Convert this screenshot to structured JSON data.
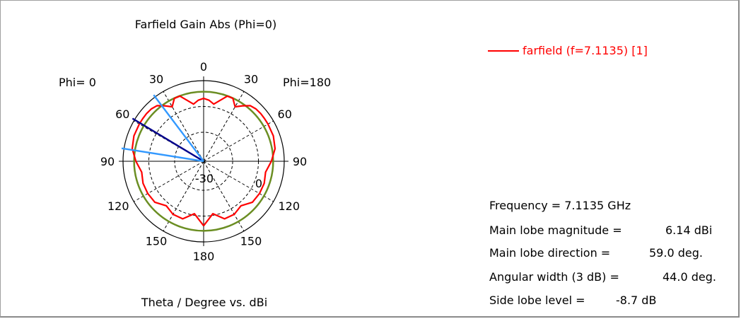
{
  "chart_data": {
    "type": "polar",
    "title": "Farfield Gain Abs (Phi=0)",
    "xlabel": "Theta / Degree vs. dBi",
    "left_label": "Phi=  0",
    "right_label": "Phi=180",
    "theta_tick_labels": [
      "0",
      "30",
      "60",
      "90",
      "120",
      "150",
      "180",
      "150",
      "120",
      "90",
      "60",
      "30"
    ],
    "radial_tick_labels": [
      "-30",
      "0"
    ],
    "radial_range_dbi": [
      -40,
      10
    ],
    "series": [
      {
        "name": "farfield (f=7.1135) [1]",
        "color": "#ff0000",
        "theta_deg": [
          -180,
          -170,
          -160,
          -150,
          -140,
          -130,
          -120,
          -110,
          -100,
          -90,
          -80,
          -70,
          -60,
          -55,
          -50,
          -45,
          -40,
          -35,
          -30,
          -25,
          -20,
          -15,
          -10,
          -5,
          0,
          5,
          10,
          15,
          20,
          25,
          30,
          35,
          40,
          45,
          50,
          55,
          60,
          70,
          80,
          90,
          100,
          110,
          120,
          130,
          140,
          150,
          160,
          170,
          180
        ],
        "gain_dbi": [
          0,
          -7,
          -2,
          -2,
          -4,
          -0.5,
          0,
          0,
          -1,
          2,
          5,
          6,
          6.1,
          6.1,
          6.14,
          5.9,
          5,
          2,
          -1,
          3,
          3,
          -1,
          -4,
          -2,
          -1,
          -2,
          -4,
          -1,
          3,
          3,
          -1,
          2,
          5,
          5.9,
          6.14,
          6.1,
          6.1,
          6,
          5,
          2,
          -1,
          0,
          0,
          -0.5,
          -4,
          -2,
          -2,
          -7,
          0
        ]
      }
    ],
    "circles": [
      {
        "label": "3 dB contour",
        "value_dbi": 3.14,
        "color": "#6b8e23"
      }
    ],
    "indicator_lines": [
      {
        "label": "Main lobe direction",
        "theta_deg": -59,
        "color": "#00008b"
      },
      {
        "label": "Angular width (3 dB) edge",
        "theta_deg": -37,
        "color": "#3399ff"
      },
      {
        "label": "Angular width (3 dB) edge",
        "theta_deg": -81,
        "color": "#3399ff"
      }
    ],
    "grid": true
  },
  "legend": {
    "entry": "farfield (f=7.1135) [1]"
  },
  "summary": {
    "frequency": "Frequency = 7.1135 GHz",
    "main_lobe_magnitude_label": "Main lobe magnitude =",
    "main_lobe_magnitude_value": "6.14 dBi",
    "main_lobe_direction_label": "Main lobe direction =",
    "main_lobe_direction_value": "59.0 deg.",
    "angular_width_label": "Angular width (3 dB) =",
    "angular_width_value": "44.0 deg.",
    "side_lobe_label": "Side lobe level =",
    "side_lobe_value": "-8.7 dB"
  }
}
